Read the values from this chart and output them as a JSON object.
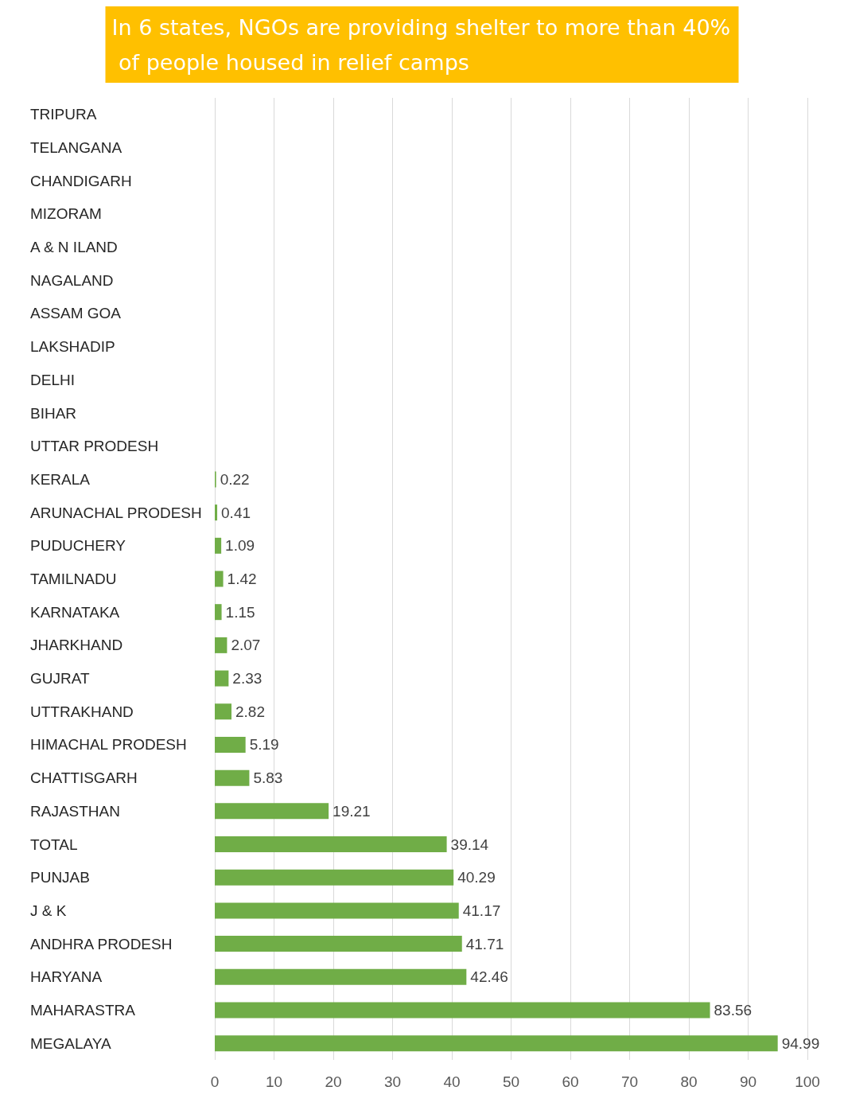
{
  "chart_data": {
    "type": "bar",
    "orientation": "horizontal",
    "title": "In 6 states, NGOs are providing shelter to more than 40% of people housed in relief camps",
    "categories": [
      "TRIPURA",
      "TELANGANA",
      "CHANDIGARH",
      "MIZORAM",
      "A & N ILAND",
      "NAGALAND",
      "ASSAM GOA",
      "LAKSHADIP",
      "DELHI",
      "BIHAR",
      "UTTAR PRODESH",
      "KERALA",
      "ARUNACHAL PRODESH",
      "PUDUCHERY",
      "TAMILNADU",
      "KARNATAKA",
      "JHARKHAND",
      "GUJRAT",
      "UTTRAKHAND",
      "HIMACHAL PRODESH",
      "CHATTISGARH",
      "RAJASTHAN",
      "TOTAL",
      "PUNJAB",
      "J & K",
      "ANDHRA PRODESH",
      "HARYANA",
      "MAHARASTRA",
      "MEGALAYA"
    ],
    "values": [
      null,
      null,
      null,
      null,
      null,
      null,
      null,
      null,
      null,
      null,
      null,
      0.22,
      0.41,
      1.09,
      1.42,
      1.15,
      2.07,
      2.33,
      2.82,
      5.19,
      5.83,
      19.21,
      39.14,
      40.29,
      41.17,
      41.71,
      42.46,
      83.56,
      94.99
    ],
    "color": "#70ad47",
    "xlim": [
      0,
      100
    ],
    "xticks": [
      0,
      10,
      20,
      30,
      40,
      50,
      60,
      70,
      80,
      90,
      100
    ],
    "grid": "x",
    "data_labels": true
  }
}
